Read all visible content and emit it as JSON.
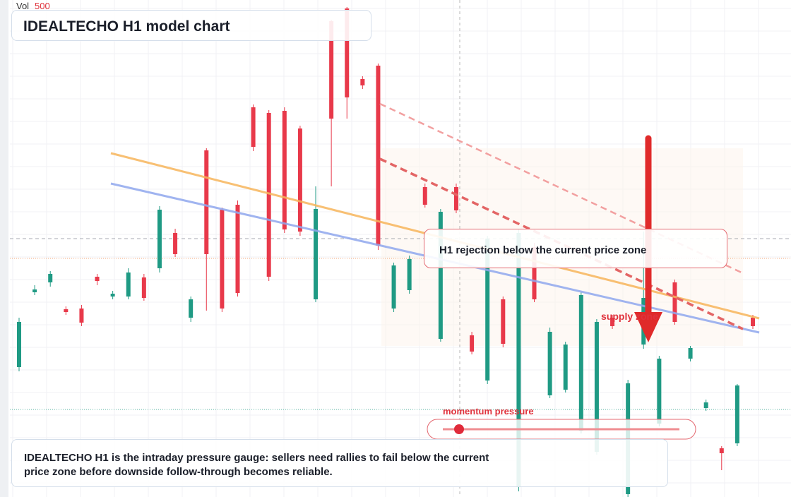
{
  "chart_data": {
    "type": "candlestick",
    "title": "IDEALTECHO H1 model chart",
    "volume_label": "Vol",
    "volume_value": "500",
    "annotation": "H1 rejection below the current price zone",
    "zone_label": "supply zone",
    "gauge_label": "momentum pressure",
    "description": [
      "IDEALTECHO H1 is the intraday pressure gauge: sellers need rallies to fail below the current",
      "price zone before downside follow-through becomes reliable."
    ],
    "ylim": [
      0,
      704
    ],
    "up_color": "#1f9a84",
    "down_color": "#e8394a",
    "open": [
      184,
      290,
      304,
      266,
      267,
      312,
      284,
      284,
      311,
      324,
      374,
      254,
      491,
      407,
      414,
      552,
      544,
      547,
      522,
      280,
      674,
      692,
      592,
      611,
      267,
      293,
      439,
      224,
      439,
      229,
      165,
      280,
      14,
      354,
      144,
      152,
      94,
      64,
      254,
      4,
      216,
      104,
      304,
      196,
      126,
      69,
      76,
      254
    ],
    "high": [
      254,
      300,
      320,
      270,
      272,
      316,
      292,
      324,
      316,
      412,
      380,
      284,
      494,
      410,
      420,
      556,
      548,
      552,
      526,
      440,
      676,
      694,
      596,
      614,
      332,
      342,
      444,
      408,
      444,
      234,
      370,
      284,
      380,
      360,
      240,
      220,
      290,
      252,
      258,
      166,
      376,
      200,
      308,
      214,
      138,
      72,
      160,
      258
    ],
    "low": [
      178,
      286,
      298,
      258,
      242,
      300,
      280,
      280,
      278,
      318,
      340,
      248,
      264,
      262,
      284,
      490,
      306,
      374,
      370,
      276,
      440,
      536,
      578,
      350,
      262,
      288,
      410,
      220,
      402,
      202,
      160,
      212,
      8,
      276,
      140,
      148,
      90,
      60,
      238,
      0,
      210,
      100,
      244,
      192,
      122,
      38,
      72,
      238
    ],
    "close": [
      248,
      294,
      316,
      262,
      247,
      306,
      288,
      318,
      282,
      407,
      344,
      280,
      344,
      267,
      289,
      496,
      312,
      379,
      376,
      408,
      536,
      566,
      583,
      356,
      328,
      337,
      414,
      404,
      406,
      206,
      366,
      217,
      374,
      280,
      234,
      216,
      286,
      248,
      242,
      161,
      282,
      196,
      248,
      211,
      134,
      62,
      158,
      242
    ]
  }
}
